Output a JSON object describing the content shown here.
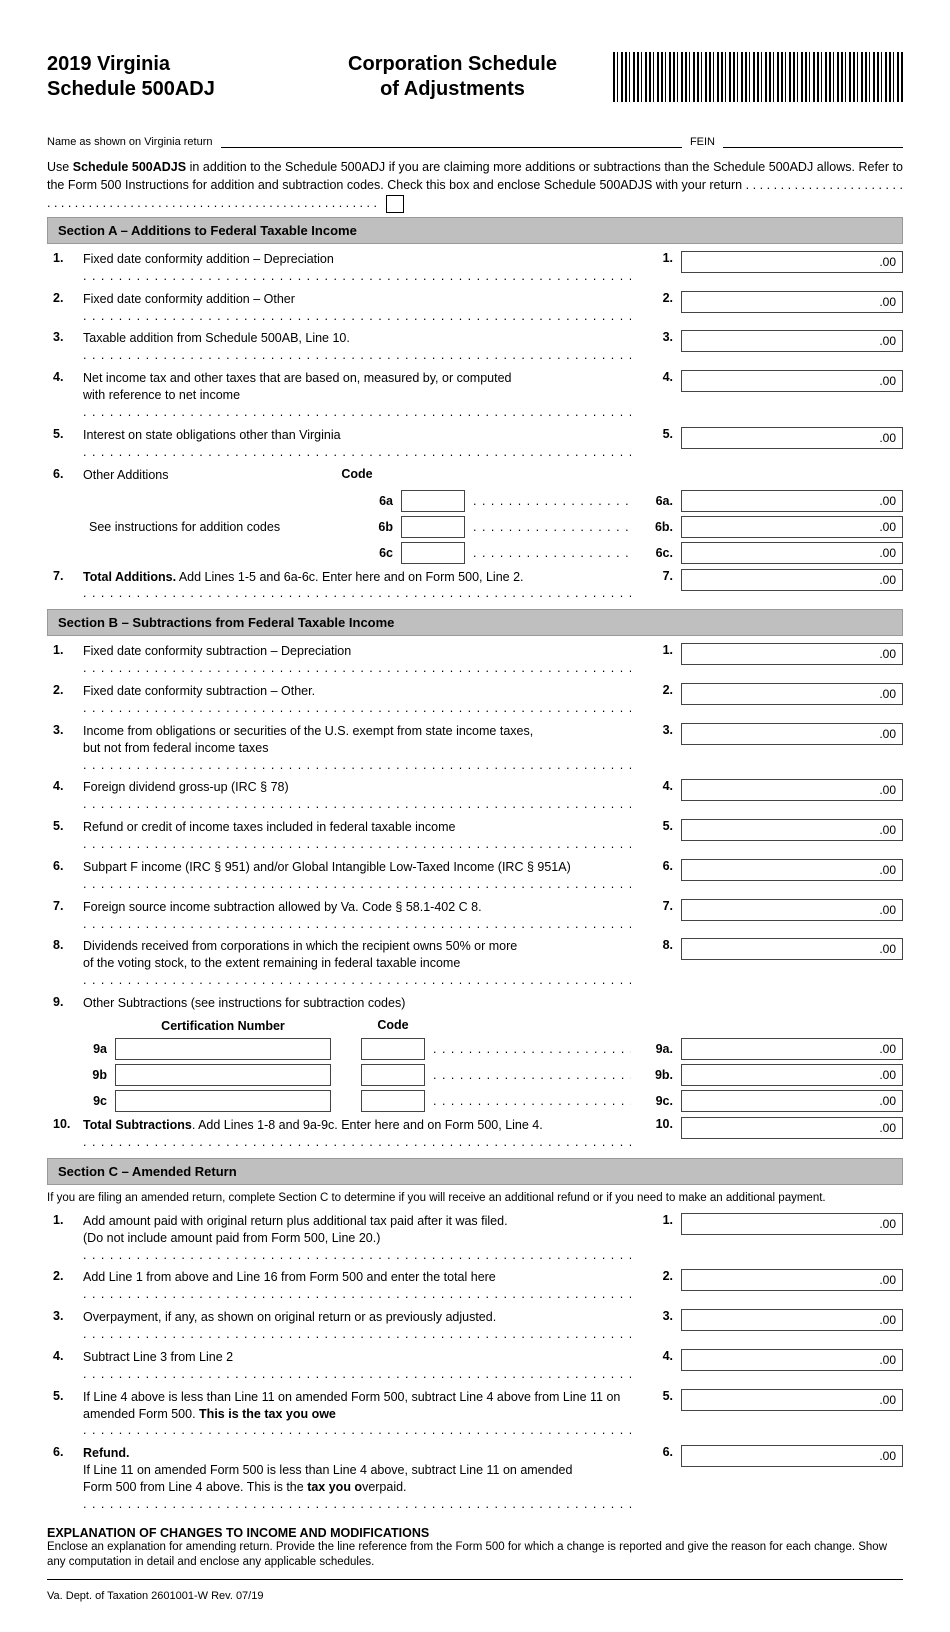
{
  "header": {
    "left_line1": "2019 Virginia",
    "left_line2": "Schedule 500ADJ",
    "mid_line1": "Corporation Schedule",
    "mid_line2": "of Adjustments"
  },
  "name_label": "Name as shown on Virginia return",
  "fein_label": "FEIN",
  "intro": {
    "text": "Use ",
    "bold1": "Schedule 500ADJS",
    "rest": " in addition to the Schedule 500ADJ if you are claiming more additions or subtractions than the Schedule 500ADJ allows. Refer to the Form 500 Instructions for addition and subtraction codes. Check this box and enclose Schedule 500ADJS with your return"
  },
  "sectionA": {
    "title": "Section A – Additions to Federal Taxable Income",
    "rows": [
      {
        "n": "1.",
        "txt": "Fixed date conformity addition – Depreciation",
        "n2": "1."
      },
      {
        "n": "2.",
        "txt": "Fixed date conformity addition – Other",
        "n2": "2."
      },
      {
        "n": "3.",
        "txt": "Taxable addition from Schedule 500AB, Line 10.",
        "n2": "3."
      },
      {
        "n": "4.",
        "txt": "Net income tax and other taxes that are based on, measured by, or computed",
        "txt2": "with reference to net income",
        "n2": "4."
      },
      {
        "n": "5.",
        "txt": "Interest on state obligations other than Virginia",
        "n2": "5."
      },
      {
        "n": "6.",
        "txt": "Other Additions"
      }
    ],
    "code_label": "Code",
    "see_instr": "See instructions for addition codes",
    "subs": [
      {
        "n": "6a",
        "n2": "6a."
      },
      {
        "n": "6b",
        "n2": "6b."
      },
      {
        "n": "6c",
        "n2": "6c."
      }
    ],
    "total": {
      "n": "7.",
      "bold": "Total Additions.",
      "txt": " Add Lines 1-5 and 6a-6c. Enter here and on Form 500, Line 2.",
      "n2": "7."
    }
  },
  "sectionB": {
    "title": "Section B – Subtractions from Federal Taxable Income",
    "rows": [
      {
        "n": "1.",
        "txt": "Fixed date conformity subtraction – Depreciation",
        "n2": "1."
      },
      {
        "n": "2.",
        "txt": "Fixed date conformity subtraction – Other.",
        "n2": "2."
      },
      {
        "n": "3.",
        "txt": "Income from obligations or securities of the U.S. exempt from state income taxes,",
        "txt2": "but not from federal income taxes",
        "n2": "3."
      },
      {
        "n": "4.",
        "txt": "Foreign dividend gross-up (IRC § 78)",
        "n2": "4."
      },
      {
        "n": "5.",
        "txt": "Refund or credit of income taxes included in federal taxable income",
        "n2": "5."
      },
      {
        "n": "6.",
        "txt": "Subpart F income (IRC § 951) and/or Global Intangible Low-Taxed Income (IRC § 951A)",
        "n2": "6."
      },
      {
        "n": "7.",
        "txt": "Foreign source income subtraction allowed by Va. Code § 58.1-402 C 8.",
        "n2": "7.",
        "ital": "Va. Code"
      },
      {
        "n": "8.",
        "txt": "Dividends received from corporations in which the recipient owns 50% or more",
        "txt2": "of the voting stock, to the extent remaining in federal taxable income",
        "n2": "8."
      },
      {
        "n": "9.",
        "txt": "Other Subtractions (see instructions for subtraction codes)"
      }
    ],
    "cert_label": "Certification Number",
    "code_label": "Code",
    "subs": [
      {
        "n": "9a",
        "n2": "9a."
      },
      {
        "n": "9b",
        "n2": "9b."
      },
      {
        "n": "9c",
        "n2": "9c."
      }
    ],
    "total": {
      "n": "10.",
      "bold": "Total Subtractions",
      "txt": ". Add Lines 1-8 and 9a-9c. Enter here and on Form 500, Line 4.",
      "n2": "10."
    }
  },
  "sectionC": {
    "title": "Section C – Amended Return",
    "intro": "If you are filing an amended return, complete Section C to determine if you will receive an additional refund or if you need to make an additional payment.",
    "rows": [
      {
        "n": "1.",
        "txt": "Add amount paid with original return plus additional tax paid after it was filed.",
        "txt2": "(Do not include amount paid from Form 500, Line 20.)",
        "n2": "1."
      },
      {
        "n": "2.",
        "txt": "Add Line 1 from above and Line 16 from Form 500 and enter the total here",
        "n2": "2."
      },
      {
        "n": "3.",
        "txt": "Overpayment, if any, as shown on original return or as previously adjusted.",
        "n2": "3."
      },
      {
        "n": "4.",
        "txt": "Subtract Line 3 from Line 2",
        "n2": "4."
      },
      {
        "n": "5.",
        "txt": "If Line 4 above is less than Line 11 on amended Form 500, subtract Line 4 above from Line 11 on",
        "txt2": "amended Form 500. ",
        "bold2": "This is the tax you owe",
        "n2": "5."
      },
      {
        "n": "6.",
        "bold": "Refund.",
        "txt": " If Line 11 on amended Form 500 is less than Line 4 above, subtract Line 11 on amended",
        "txt2a": "Form 500 from Line 4 above. This is the ",
        "bold2": "tax you o",
        "txt2b": "verpaid.",
        "n2": "6."
      }
    ]
  },
  "explanation": {
    "heading": "EXPLANATION OF CHANGES TO INCOME AND MODIFICATIONS",
    "text": "Enclose an explanation for amending return. Provide the line reference from the Form 500 for which a change is reported and give the reason for each change. Show any computation in detail and enclose any applicable schedules."
  },
  "footer": "Va. Dept. of Taxation   2601001-W   Rev. 07/19",
  "amt_suffix": ".00"
}
